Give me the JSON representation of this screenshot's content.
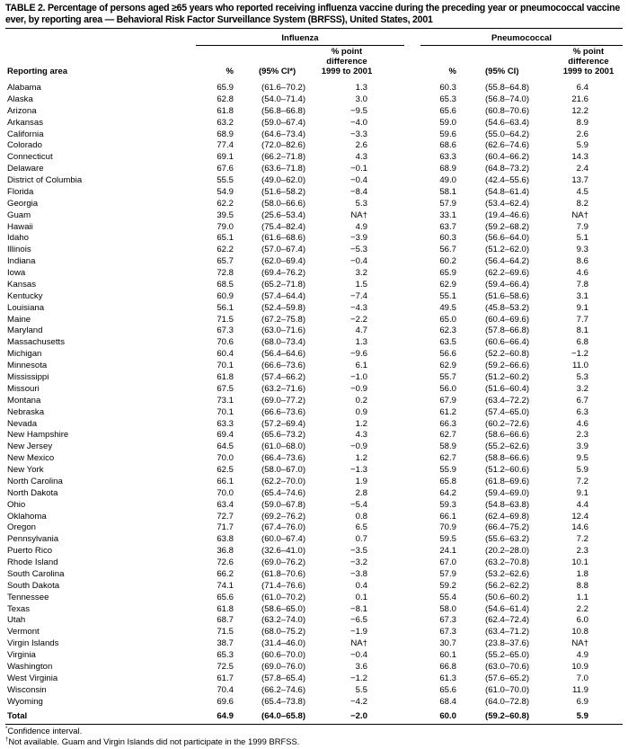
{
  "title": "TABLE 2. Percentage of persons aged ≥65 years who reported receiving influenza vaccine during the preceding year or pneumococcal vaccine ever, by reporting area — Behavioral Risk Factor Surveillance System (BRFSS), United States, 2001",
  "groups": {
    "influenza": "Influenza",
    "pneumococcal": "Pneumococcal"
  },
  "headers": {
    "area": "Reporting area",
    "flu_pct": "%",
    "flu_ci": "(95% CI*)",
    "flu_diff_1": "% point",
    "flu_diff_2": "difference",
    "flu_diff_3": "1999 to 2001",
    "pn_pct": "%",
    "pn_ci": "(95% CI)",
    "pn_diff_1": "% point",
    "pn_diff_2": "difference",
    "pn_diff_3": "1999 to 2001"
  },
  "rows": [
    [
      "Alabama",
      "65.9",
      "(61.6–70.2)",
      "1.3",
      "60.3",
      "(55.8–64.8)",
      "6.4"
    ],
    [
      "Alaska",
      "62.8",
      "(54.0–71.4)",
      "3.0",
      "65.3",
      "(56.8–74.0)",
      "21.6"
    ],
    [
      "Arizona",
      "61.8",
      "(56.8–66.8)",
      "−9.5",
      "65.6",
      "(60.8–70.6)",
      "12.2"
    ],
    [
      "Arkansas",
      "63.2",
      "(59.0–67.4)",
      "−4.0",
      "59.0",
      "(54.6–63.4)",
      "8.9"
    ],
    [
      "California",
      "68.9",
      "(64.6–73.4)",
      "−3.3",
      "59.6",
      "(55.0–64.2)",
      "2.6"
    ],
    [
      "Colorado",
      "77.4",
      "(72.0–82.6)",
      "2.6",
      "68.6",
      "(62.6–74.6)",
      "5.9"
    ],
    [
      "Connecticut",
      "69.1",
      "(66.2–71.8)",
      "4.3",
      "63.3",
      "(60.4–66.2)",
      "14.3"
    ],
    [
      "Delaware",
      "67.6",
      "(63.6–71.8)",
      "−0.1",
      "68.9",
      "(64.8–73.2)",
      "2.4"
    ],
    [
      "District of Columbia",
      "55.5",
      "(49.0–62.0)",
      "−0.4",
      "49.0",
      "(42.4–55.6)",
      "13.7"
    ],
    [
      "Florida",
      "54.9",
      "(51.6–58.2)",
      "−8.4",
      "58.1",
      "(54.8–61.4)",
      "4.5"
    ],
    [
      "Georgia",
      "62.2",
      "(58.0–66.6)",
      "5.3",
      "57.9",
      "(53.4–62.4)",
      "8.2"
    ],
    [
      "Guam",
      "39.5",
      "(25.6–53.4)",
      "NA†",
      "33.1",
      "(19.4–46.6)",
      "NA†"
    ],
    [
      "Hawaii",
      "79.0",
      "(75.4–82.4)",
      "4.9",
      "63.7",
      "(59.2–68.2)",
      "7.9"
    ],
    [
      "Idaho",
      "65.1",
      "(61.6–68.6)",
      "−3.9",
      "60.3",
      "(56.6–64.0)",
      "5.1"
    ],
    [
      "Illinois",
      "62.2",
      "(57.0–67.4)",
      "−5.3",
      "56.7",
      "(51.2–62.0)",
      "9.3"
    ],
    [
      "Indiana",
      "65.7",
      "(62.0–69.4)",
      "−0.4",
      "60.2",
      "(56.4–64.2)",
      "8.6"
    ],
    [
      "Iowa",
      "72.8",
      "(69.4–76.2)",
      "3.2",
      "65.9",
      "(62.2–69.6)",
      "4.6"
    ],
    [
      "Kansas",
      "68.5",
      "(65.2–71.8)",
      "1.5",
      "62.9",
      "(59.4–66.4)",
      "7.8"
    ],
    [
      "Kentucky",
      "60.9",
      "(57.4–64.4)",
      "−7.4",
      "55.1",
      "(51.6–58.6)",
      "3.1"
    ],
    [
      "Louisiana",
      "56.1",
      "(52.4–59.8)",
      "−4.3",
      "49.5",
      "(45.8–53.2)",
      "9.1"
    ],
    [
      "Maine",
      "71.5",
      "(67.2–75.8)",
      "−2.2",
      "65.0",
      "(60.4–69.6)",
      "7.7"
    ],
    [
      "Maryland",
      "67.3",
      "(63.0–71.6)",
      "4.7",
      "62.3",
      "(57.8–66.8)",
      "8.1"
    ],
    [
      "Massachusetts",
      "70.6",
      "(68.0–73.4)",
      "1.3",
      "63.5",
      "(60.6–66.4)",
      "6.8"
    ],
    [
      "Michigan",
      "60.4",
      "(56.4–64.6)",
      "−9.6",
      "56.6",
      "(52.2–60.8)",
      "−1.2"
    ],
    [
      "Minnesota",
      "70.1",
      "(66.6–73.6)",
      "6.1",
      "62.9",
      "(59.2–66.6)",
      "11.0"
    ],
    [
      "Mississippi",
      "61.8",
      "(57.4–66.2)",
      "−1.0",
      "55.7",
      "(51.2–60.2)",
      "5.3"
    ],
    [
      "Missouri",
      "67.5",
      "(63.2–71.6)",
      "−0.9",
      "56.0",
      "(51.6–60.4)",
      "3.2"
    ],
    [
      "Montana",
      "73.1",
      "(69.0–77.2)",
      "0.2",
      "67.9",
      "(63.4–72.2)",
      "6.7"
    ],
    [
      "Nebraska",
      "70.1",
      "(66.6–73.6)",
      "0.9",
      "61.2",
      "(57.4–65.0)",
      "6.3"
    ],
    [
      "Nevada",
      "63.3",
      "(57.2–69.4)",
      "1.2",
      "66.3",
      "(60.2–72.6)",
      "4.6"
    ],
    [
      "New Hampshire",
      "69.4",
      "(65.6–73.2)",
      "4.3",
      "62.7",
      "(58.6–66.6)",
      "2.3"
    ],
    [
      "New Jersey",
      "64.5",
      "(61.0–68.0)",
      "−0.9",
      "58.9",
      "(55.2–62.6)",
      "3.9"
    ],
    [
      "New Mexico",
      "70.0",
      "(66.4–73.6)",
      "1.2",
      "62.7",
      "(58.8–66.6)",
      "9.5"
    ],
    [
      "New York",
      "62.5",
      "(58.0–67.0)",
      "−1.3",
      "55.9",
      "(51.2–60.6)",
      "5.9"
    ],
    [
      "North Carolina",
      "66.1",
      "(62.2–70.0)",
      "1.9",
      "65.8",
      "(61.8–69.6)",
      "7.2"
    ],
    [
      "North Dakota",
      "70.0",
      "(65.4–74.6)",
      "2.8",
      "64.2",
      "(59.4–69.0)",
      "9.1"
    ],
    [
      "Ohio",
      "63.4",
      "(59.0–67.8)",
      "−5.4",
      "59.3",
      "(54.8–63.8)",
      "4.4"
    ],
    [
      "Oklahoma",
      "72.7",
      "(69.2–76.2)",
      "0.8",
      "66.1",
      "(62.4–69.8)",
      "12.4"
    ],
    [
      "Oregon",
      "71.7",
      "(67.4–76.0)",
      "6.5",
      "70.9",
      "(66.4–75.2)",
      "14.6"
    ],
    [
      "Pennsylvania",
      "63.8",
      "(60.0–67.4)",
      "0.7",
      "59.5",
      "(55.6–63.2)",
      "7.2"
    ],
    [
      "Puerto Rico",
      "36.8",
      "(32.6–41.0)",
      "−3.5",
      "24.1",
      "(20.2–28.0)",
      "2.3"
    ],
    [
      "Rhode Island",
      "72.6",
      "(69.0–76.2)",
      "−3.2",
      "67.0",
      "(63.2–70.8)",
      "10.1"
    ],
    [
      "South Carolina",
      "66.2",
      "(61.8–70.6)",
      "−3.8",
      "57.9",
      "(53.2–62.6)",
      "1.8"
    ],
    [
      "South Dakota",
      "74.1",
      "(71.4–76.6)",
      "0.4",
      "59.2",
      "(56.2–62.2)",
      "8.8"
    ],
    [
      "Tennessee",
      "65.6",
      "(61.0–70.2)",
      "0.1",
      "55.4",
      "(50.6–60.2)",
      "1.1"
    ],
    [
      "Texas",
      "61.8",
      "(58.6–65.0)",
      "−8.1",
      "58.0",
      "(54.6–61.4)",
      "2.2"
    ],
    [
      "Utah",
      "68.7",
      "(63.2–74.0)",
      "−6.5",
      "67.3",
      "(62.4–72.4)",
      "6.0"
    ],
    [
      "Vermont",
      "71.5",
      "(68.0–75.2)",
      "−1.9",
      "67.3",
      "(63.4–71.2)",
      "10.8"
    ],
    [
      "Virgin Islands",
      "38.7",
      "(31.4–46.0)",
      "NA†",
      "30.7",
      "(23.8–37.6)",
      "NA†"
    ],
    [
      "Virginia",
      "65.3",
      "(60.6–70.0)",
      "−0.4",
      "60.1",
      "(55.2–65.0)",
      "4.9"
    ],
    [
      "Washington",
      "72.5",
      "(69.0–76.0)",
      "3.6",
      "66.8",
      "(63.0–70.6)",
      "10.9"
    ],
    [
      "West Virginia",
      "61.7",
      "(57.8–65.4)",
      "−1.2",
      "61.3",
      "(57.6–65.2)",
      "7.0"
    ],
    [
      "Wisconsin",
      "70.4",
      "(66.2–74.6)",
      "5.5",
      "65.6",
      "(61.0–70.0)",
      "11.9"
    ],
    [
      "Wyoming",
      "69.6",
      "(65.4–73.8)",
      "−4.2",
      "68.4",
      "(64.0–72.8)",
      "6.9"
    ]
  ],
  "total": [
    "Total",
    "64.9",
    "(64.0–65.8)",
    "−2.0",
    "60.0",
    "(59.2–60.8)",
    "5.9"
  ],
  "footnotes": {
    "star_mark": "*",
    "star_text": "Confidence interval.",
    "dagger_mark": "†",
    "dagger_text": "Not available. Guam and Virgin Islands did not participate in the 1999 BRFSS."
  }
}
